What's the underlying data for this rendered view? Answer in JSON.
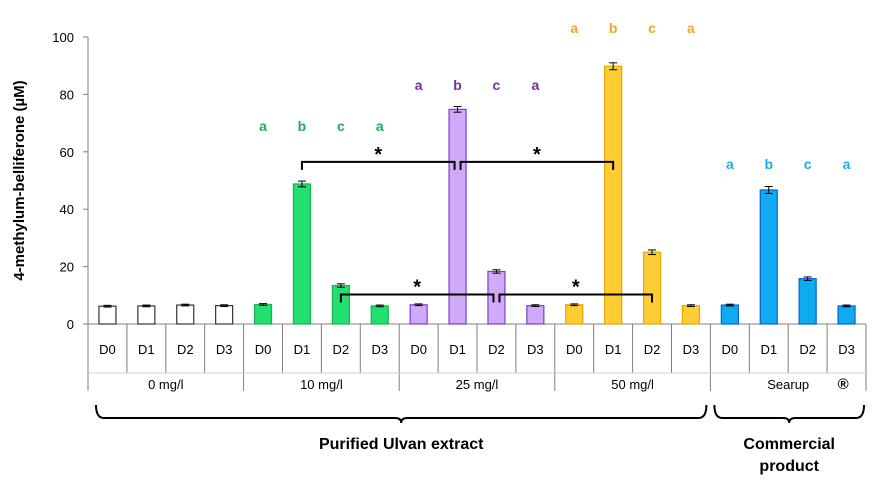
{
  "chart_data": {
    "type": "bar",
    "ylabel": "4-methylum-belliferone (µM)",
    "ylim": [
      0,
      100
    ],
    "yticks": [
      0,
      20,
      40,
      60,
      80,
      100
    ],
    "grid": false,
    "groups": [
      {
        "name": "0 mg/l",
        "color": "#ffffff",
        "edge": "#333333",
        "sig_color": "",
        "categories": [
          "D0",
          "D1",
          "D2",
          "D3"
        ],
        "values": [
          6.2,
          6.3,
          6.6,
          6.4
        ],
        "errors": [
          0.3,
          0.3,
          0.3,
          0.3
        ],
        "letters": []
      },
      {
        "name": "10 mg/l",
        "color": "#22e06e",
        "edge": "#18b050",
        "sig_color": "#1fae55",
        "categories": [
          "D0",
          "D1",
          "D2",
          "D3"
        ],
        "values": [
          6.8,
          48.8,
          13.4,
          6.3
        ],
        "errors": [
          0.3,
          1.0,
          0.6,
          0.3
        ],
        "letters": [
          "a",
          "b",
          "c",
          "a"
        ]
      },
      {
        "name": "25 mg/l",
        "color": "#d0aaf8",
        "edge": "#7a3fc0",
        "sig_color": "#7030a0",
        "categories": [
          "D0",
          "D1",
          "D2",
          "D3"
        ],
        "values": [
          6.7,
          74.8,
          18.3,
          6.4
        ],
        "errors": [
          0.3,
          1.0,
          0.6,
          0.3
        ],
        "letters": [
          "a",
          "b",
          "c",
          "a"
        ]
      },
      {
        "name": "50 mg/l",
        "color": "#ffcd33",
        "edge": "#e0a800",
        "sig_color": "#f5a623",
        "categories": [
          "D0",
          "D1",
          "D2",
          "D3"
        ],
        "values": [
          6.7,
          89.8,
          25.0,
          6.4
        ],
        "errors": [
          0.3,
          1.2,
          0.8,
          0.3
        ],
        "letters": [
          "a",
          "b",
          "c",
          "a"
        ]
      },
      {
        "name": "Searup",
        "name_suffix": "®",
        "color": "#10aaf0",
        "edge": "#0a5fd6",
        "sig_color": "#1ab0e8",
        "categories": [
          "D0",
          "D1",
          "D2",
          "D3"
        ],
        "values": [
          6.6,
          46.7,
          15.8,
          6.3
        ],
        "errors": [
          0.3,
          1.2,
          0.6,
          0.3
        ],
        "letters": [
          "a",
          "b",
          "c",
          "a"
        ]
      }
    ],
    "comparisons": [
      {
        "from": {
          "group": 1,
          "cat": 1
        },
        "to": {
          "group": 2,
          "cat": 1
        },
        "level": 56.5,
        "label": "*"
      },
      {
        "from": {
          "group": 2,
          "cat": 1
        },
        "to": {
          "group": 3,
          "cat": 1
        },
        "level": 56.5,
        "label": "*"
      },
      {
        "from": {
          "group": 1,
          "cat": 2
        },
        "to": {
          "group": 2,
          "cat": 2
        },
        "level": 10.3,
        "label": "*"
      },
      {
        "from": {
          "group": 2,
          "cat": 2
        },
        "to": {
          "group": 3,
          "cat": 2
        },
        "level": 10.3,
        "label": "*"
      }
    ],
    "brackets": [
      {
        "label": "Purified Ulvan extract",
        "groups": [
          0,
          3
        ]
      },
      {
        "label": "Commercial\nproduct",
        "groups": [
          4,
          4
        ]
      }
    ]
  }
}
